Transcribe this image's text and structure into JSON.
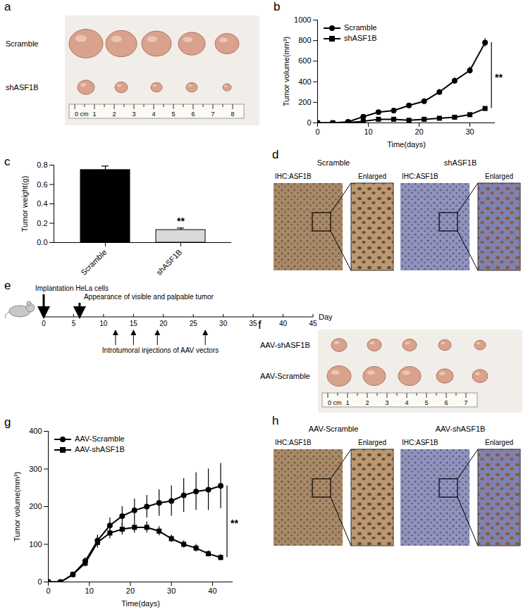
{
  "chart_data": [
    {
      "type": "line",
      "xlabel": "Time(days)",
      "ylabel": "Tumor volume(mm³)",
      "x": [
        0,
        3,
        6,
        9,
        12,
        15,
        18,
        21,
        24,
        27,
        30,
        33
      ],
      "series": [
        {
          "name": "Scramble",
          "color": "#000000",
          "marker": "circle",
          "values": [
            0,
            0,
            10,
            60,
            105,
            120,
            170,
            210,
            300,
            410,
            510,
            780
          ],
          "errors": [
            0,
            0,
            5,
            10,
            15,
            20,
            20,
            25,
            25,
            30,
            35,
            40
          ]
        },
        {
          "name": "shASF1B",
          "color": "#000000",
          "marker": "square",
          "values": [
            0,
            0,
            3,
            15,
            35,
            35,
            25,
            35,
            45,
            55,
            80,
            140
          ],
          "errors": [
            0,
            0,
            2,
            5,
            8,
            8,
            6,
            8,
            8,
            10,
            12,
            20
          ]
        }
      ],
      "xlim": [
        0,
        35
      ],
      "xticks": [
        0,
        10,
        20,
        30
      ],
      "ylim": [
        0,
        1000
      ],
      "yticks": [
        0,
        200,
        400,
        600,
        800,
        1000
      ],
      "legend": "top-left",
      "annotations": [
        {
          "text": "**",
          "x": 33
        }
      ]
    },
    {
      "type": "bar",
      "ylabel": "Tumor weight(g)",
      "categories": [
        "Scramble",
        "shASF1B"
      ],
      "values": [
        0.75,
        0.13
      ],
      "errors": [
        0.04,
        0.02
      ],
      "colors": [
        "#000000",
        "#d9d9d9"
      ],
      "ylim": [
        0,
        0.8
      ],
      "yticks": [
        {
          "value": 0,
          "label": "0.0"
        },
        {
          "value": 0.2,
          "label": "0.2"
        },
        {
          "value": 0.4,
          "label": "0.4"
        },
        {
          "value": 0.6,
          "label": "0.6"
        },
        {
          "value": 0.8,
          "label": "0.8"
        }
      ],
      "annotations": [
        {
          "text": "**",
          "x": "shASF1B"
        }
      ]
    },
    {
      "type": "line",
      "xlabel": "Time(days)",
      "ylabel": "Tumor volume(mm³)",
      "x": [
        0,
        3,
        6,
        9,
        12,
        15,
        18,
        21,
        24,
        27,
        30,
        33,
        36,
        39,
        42
      ],
      "series": [
        {
          "name": "AAV-Scramble",
          "color": "#000000",
          "marker": "circle",
          "values": [
            0,
            0,
            20,
            55,
            110,
            150,
            175,
            190,
            200,
            210,
            215,
            230,
            240,
            245,
            255
          ],
          "errors": [
            0,
            0,
            5,
            10,
            15,
            20,
            25,
            30,
            30,
            35,
            40,
            45,
            50,
            55,
            60
          ]
        },
        {
          "name": "AAV-shASF1B",
          "color": "#000000",
          "marker": "square",
          "values": [
            0,
            0,
            20,
            50,
            105,
            130,
            140,
            145,
            145,
            135,
            115,
            100,
            90,
            75,
            65
          ],
          "errors": [
            0,
            0,
            5,
            10,
            15,
            15,
            15,
            15,
            15,
            12,
            10,
            10,
            10,
            8,
            8
          ]
        }
      ],
      "xlim": [
        0,
        45
      ],
      "xticks": [
        0,
        10,
        20,
        30,
        40
      ],
      "ylim": [
        0,
        400
      ],
      "yticks": [
        0,
        100,
        200,
        300,
        400
      ],
      "legend": "top-left",
      "annotations": [
        {
          "text": "**",
          "x": 42
        }
      ]
    }
  ],
  "figure": {
    "panel_labels": [
      "a",
      "b",
      "c",
      "d",
      "e",
      "f",
      "g",
      "h"
    ],
    "a": {
      "rows": [
        "Scramble",
        "shASF1B"
      ],
      "ruler": [
        "0 cm",
        "1",
        "2",
        "3",
        "4",
        "5",
        "6",
        "7",
        "8"
      ]
    },
    "d": {
      "images": [
        {
          "title": "Scramble",
          "label": "IHC:ASF1B",
          "inset": "Enlarged"
        },
        {
          "title": "shASF1B",
          "label": "IHC:ASF1B",
          "inset": "Enlarged"
        }
      ]
    },
    "e": {
      "events": [
        {
          "label": "Implantation HeLa cells",
          "day": 0
        },
        {
          "label": "Appearance of visible and palpable tumor",
          "day": 6
        }
      ],
      "injections": {
        "label": "Introtumoral injections of AAV vectors",
        "days": [
          12,
          15,
          19,
          27
        ]
      },
      "axis": {
        "ticks": [
          0,
          5,
          10,
          15,
          20,
          25,
          30,
          35,
          40,
          45
        ],
        "label": "Day"
      }
    },
    "f": {
      "rows": [
        "AAV-shASF1B",
        "AAV-Scramble"
      ],
      "ruler": [
        "0 cm",
        "1",
        "2",
        "3",
        "4",
        "5",
        "6",
        "7"
      ]
    },
    "h": {
      "images": [
        {
          "title": "AAV-Scramble",
          "label": "IHC:ASF1B",
          "inset": "Enlarged"
        },
        {
          "title": "AAV-shASF1B",
          "label": "IHC:ASF1B",
          "inset": "Enlarged"
        }
      ]
    }
  }
}
